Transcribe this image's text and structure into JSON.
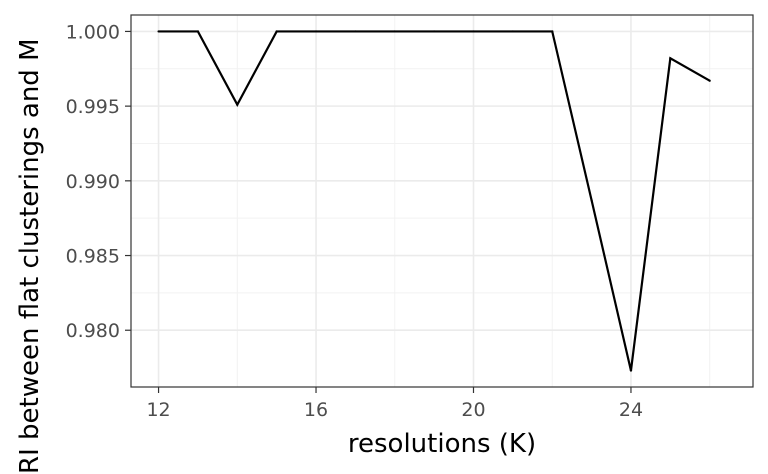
{
  "chart_data": {
    "type": "line",
    "title": "",
    "xlabel": "resolutions (K)",
    "ylabel": "RI between flat clusterings and M",
    "x": [
      12,
      13,
      14,
      15,
      16,
      17,
      18,
      19,
      20,
      21,
      22,
      23,
      24,
      25,
      26
    ],
    "series": [
      {
        "values": [
          1.0,
          1.0,
          0.9951,
          1.0,
          1.0,
          1.0,
          1.0,
          1.0,
          1.0,
          1.0,
          1.0,
          0.9887,
          0.9773,
          0.9982,
          0.9967
        ]
      }
    ],
    "xlim": [
      11.3,
      27.1
    ],
    "ylim": [
      0.9762,
      1.0011
    ],
    "xticks": [
      12,
      16,
      20,
      24
    ],
    "yticks": [
      0.98,
      0.985,
      0.99,
      0.995,
      1.0
    ],
    "xtick_labels": [
      "12",
      "16",
      "20",
      "24"
    ],
    "ytick_labels": [
      "0.980",
      "0.985",
      "0.990",
      "0.995",
      "1.000"
    ],
    "grid": true,
    "legend": "none",
    "colors": {
      "line": "#000000",
      "grid_major": "#ebebeb",
      "grid_minor": "#f2f2f2",
      "panel_border": "#333333"
    }
  }
}
